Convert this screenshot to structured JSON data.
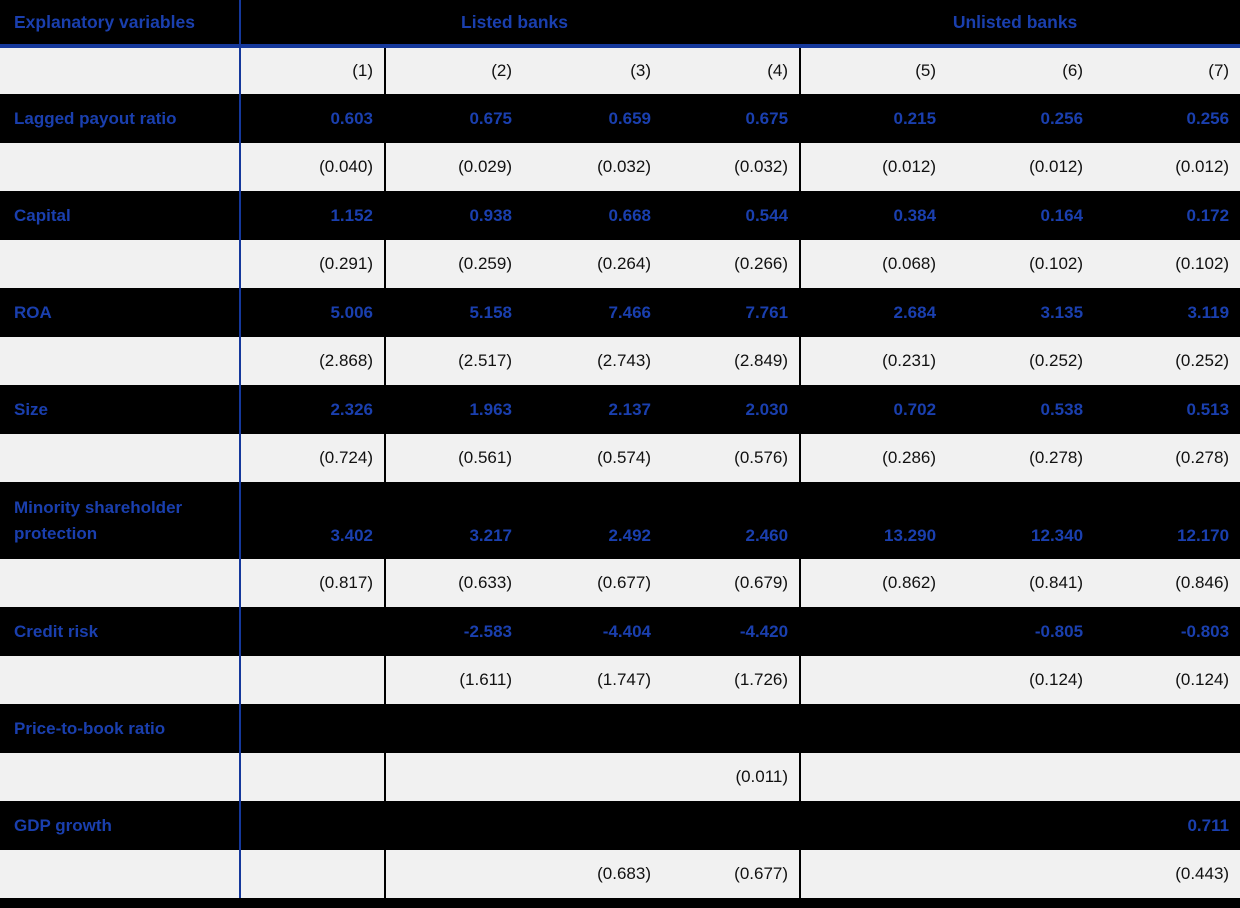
{
  "table": {
    "corner_label": "Explanatory variables",
    "groups": [
      {
        "label": "Listed banks",
        "span": 4
      },
      {
        "label": "Unlisted banks",
        "span": 3
      }
    ],
    "columns": [
      "(1)",
      "(2)",
      "(3)",
      "(4)",
      "(5)",
      "(6)",
      "(7)"
    ],
    "rows": [
      {
        "label": "Lagged payout ratio",
        "coefficients": [
          "0.603",
          "0.675",
          "0.659",
          "0.675",
          "0.215",
          "0.256",
          "0.256"
        ],
        "std_errors": [
          "(0.040)",
          "(0.029)",
          "(0.032)",
          "(0.032)",
          "(0.012)",
          "(0.012)",
          "(0.012)"
        ]
      },
      {
        "label": "Capital",
        "coefficients": [
          "1.152",
          "0.938",
          "0.668",
          "0.544",
          "0.384",
          "0.164",
          "0.172"
        ],
        "std_errors": [
          "(0.291)",
          "(0.259)",
          "(0.264)",
          "(0.266)",
          "(0.068)",
          "(0.102)",
          "(0.102)"
        ]
      },
      {
        "label": "ROA",
        "coefficients": [
          "5.006",
          "5.158",
          "7.466",
          "7.761",
          "2.684",
          "3.135",
          "3.119"
        ],
        "std_errors": [
          "(2.868)",
          "(2.517)",
          "(2.743)",
          "(2.849)",
          "(0.231)",
          "(0.252)",
          "(0.252)"
        ]
      },
      {
        "label": "Size",
        "coefficients": [
          "2.326",
          "1.963",
          "2.137",
          "2.030",
          "0.702",
          "0.538",
          "0.513"
        ],
        "std_errors": [
          "(0.724)",
          "(0.561)",
          "(0.574)",
          "(0.576)",
          "(0.286)",
          "(0.278)",
          "(0.278)"
        ]
      },
      {
        "label": "Minority shareholder protection",
        "tall": true,
        "coefficients": [
          "3.402",
          "3.217",
          "2.492",
          "2.460",
          "13.290",
          "12.340",
          "12.170"
        ],
        "std_errors": [
          "(0.817)",
          "(0.633)",
          "(0.677)",
          "(0.679)",
          "(0.862)",
          "(0.841)",
          "(0.846)"
        ]
      },
      {
        "label": "Credit risk",
        "coefficients": [
          "",
          "-2.583",
          "-4.404",
          "-4.420",
          "",
          "-0.805",
          "-0.803"
        ],
        "std_errors": [
          "",
          "(1.611)",
          "(1.747)",
          "(1.726)",
          "",
          "(0.124)",
          "(0.124)"
        ]
      },
      {
        "label": "Price-to-book ratio",
        "coefficients": [
          "",
          "",
          "",
          "",
          "",
          "",
          ""
        ],
        "std_errors": [
          "",
          "",
          "",
          "(0.011)",
          "",
          "",
          ""
        ]
      },
      {
        "label": "GDP growth",
        "coefficients": [
          "",
          "",
          "",
          "",
          "",
          "",
          "0.711"
        ],
        "std_errors": [
          "",
          "",
          "(0.683)",
          "(0.677)",
          "",
          "",
          "(0.443)"
        ]
      }
    ],
    "colors": {
      "accent_blue_text": "#1A3FAE",
      "blue_rule": "#15389B",
      "row_black": "#000000",
      "row_light": "#F1F1F1"
    }
  }
}
